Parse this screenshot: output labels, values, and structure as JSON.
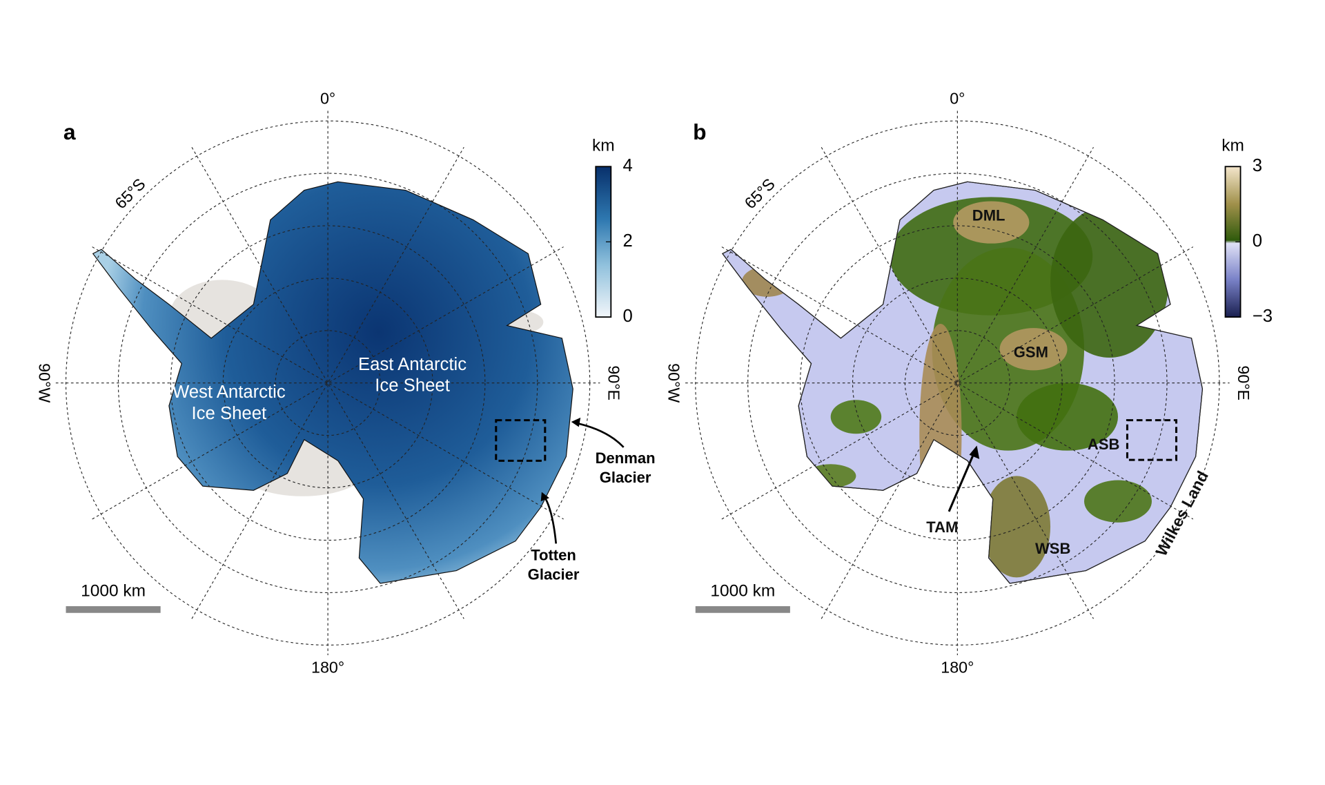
{
  "panels": [
    {
      "label": "a",
      "graticule": {
        "top": "0°",
        "bottom": "180°",
        "left": "90°W",
        "right": "90°E",
        "ring": "65°S"
      },
      "colorbar": {
        "unit": "km",
        "range": [
          0,
          4
        ],
        "ticks": [
          0,
          2,
          4
        ]
      },
      "annotations": [
        {
          "lines": [
            "West Antarctic",
            "Ice Sheet"
          ]
        },
        {
          "lines": [
            "East Antarctic",
            "Ice Sheet"
          ]
        },
        {
          "lines": [
            "Denman",
            "Glacier"
          ]
        },
        {
          "lines": [
            "Totten",
            "Glacier"
          ]
        }
      ],
      "scale_bar": "1000 km"
    },
    {
      "label": "b",
      "graticule": {
        "top": "0°",
        "bottom": "180°",
        "left": "90°W",
        "right": "90°E",
        "ring": "65°S"
      },
      "colorbar": {
        "unit": "km",
        "range": [
          -3,
          3
        ],
        "ticks": [
          {
            "value": -3,
            "label": "−3"
          },
          0,
          3
        ]
      },
      "annotations": [
        {
          "lines": [
            "DML"
          ]
        },
        {
          "lines": [
            "GSM"
          ]
        },
        {
          "lines": [
            "ASB"
          ]
        },
        {
          "lines": [
            "TAM"
          ]
        },
        {
          "lines": [
            "WSB"
          ]
        },
        {
          "lines": [
            "Wilkes Land"
          ]
        }
      ],
      "scale_bar": "1000 km"
    }
  ]
}
